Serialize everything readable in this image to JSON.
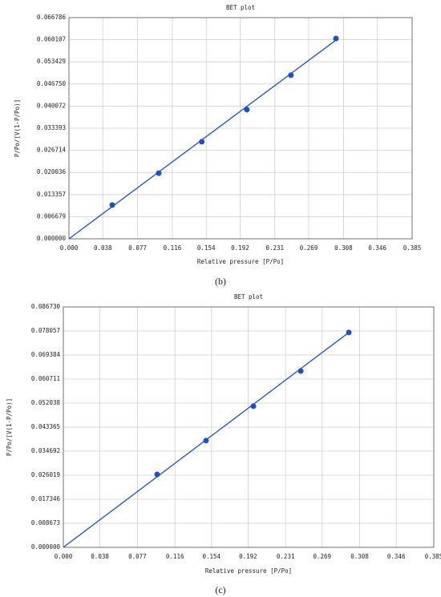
{
  "chart_data": [
    {
      "type": "scatter",
      "title": "BET plot",
      "x_label": "Relative pressure [P/Po]",
      "y_label": "P/Po/[V(1-P/Po)]",
      "caption": "(b)",
      "grid": true,
      "xlim": [
        0,
        0.385
      ],
      "ylim": [
        0,
        0.066786
      ],
      "xticks": [
        {
          "value": 0,
          "label": "0.000"
        },
        0.038,
        0.077,
        0.116,
        0.154,
        0.192,
        0.231,
        0.269,
        0.308,
        0.346,
        0.385
      ],
      "yticks": [
        {
          "value": 0,
          "label": "0.000000"
        },
        0.006679,
        0.013357,
        0.020036,
        0.026714,
        0.033393,
        0.040072,
        {
          "value": 0.04675,
          "label": "0.046750"
        },
        0.053429,
        0.060107,
        0.066786
      ],
      "series": [
        {
          "style": "markers",
          "color": "#1f4fc4",
          "x": [
            0.0486,
            0.1007,
            0.149,
            0.1996,
            0.249,
            0.2995
          ],
          "values": [
            0.0102,
            0.0198,
            0.0293,
            0.039,
            0.0494,
            0.0605
          ]
        },
        {
          "style": "line",
          "color": "#1f4fc4",
          "x": [
            0,
            0.2995
          ],
          "values": [
            0,
            0.06
          ]
        }
      ]
    },
    {
      "type": "scatter",
      "title": "BET plot",
      "x_label": "Relative pressure [P/Po]",
      "y_label": "P/Po/[V(1-P/Po)]",
      "caption": "(c)",
      "grid": true,
      "xlim": [
        0,
        0.385
      ],
      "ylim": [
        0,
        0.08673
      ],
      "xticks": [
        {
          "value": 0,
          "label": "0.000"
        },
        0.038,
        0.077,
        0.116,
        0.154,
        0.192,
        0.231,
        0.269,
        0.308,
        0.346,
        0.385
      ],
      "yticks": [
        {
          "value": 0,
          "label": "0.000000"
        },
        0.008673,
        0.017346,
        0.026019,
        0.034692,
        0.043365,
        0.052038,
        0.060711,
        0.069384,
        0.078057,
        {
          "value": 0.08673,
          "label": "0.086730"
        }
      ],
      "series": [
        {
          "style": "markers",
          "color": "#1f4fc4",
          "x": [
            0.0975,
            0.1483,
            0.1975,
            0.2467,
            0.2967
          ],
          "values": [
            0.0263,
            0.0385,
            0.0509,
            0.0636,
            0.0775
          ]
        },
        {
          "style": "line",
          "color": "#1f4fc4",
          "x": [
            0,
            0.2967
          ],
          "values": [
            0,
            0.0775
          ]
        }
      ]
    }
  ]
}
